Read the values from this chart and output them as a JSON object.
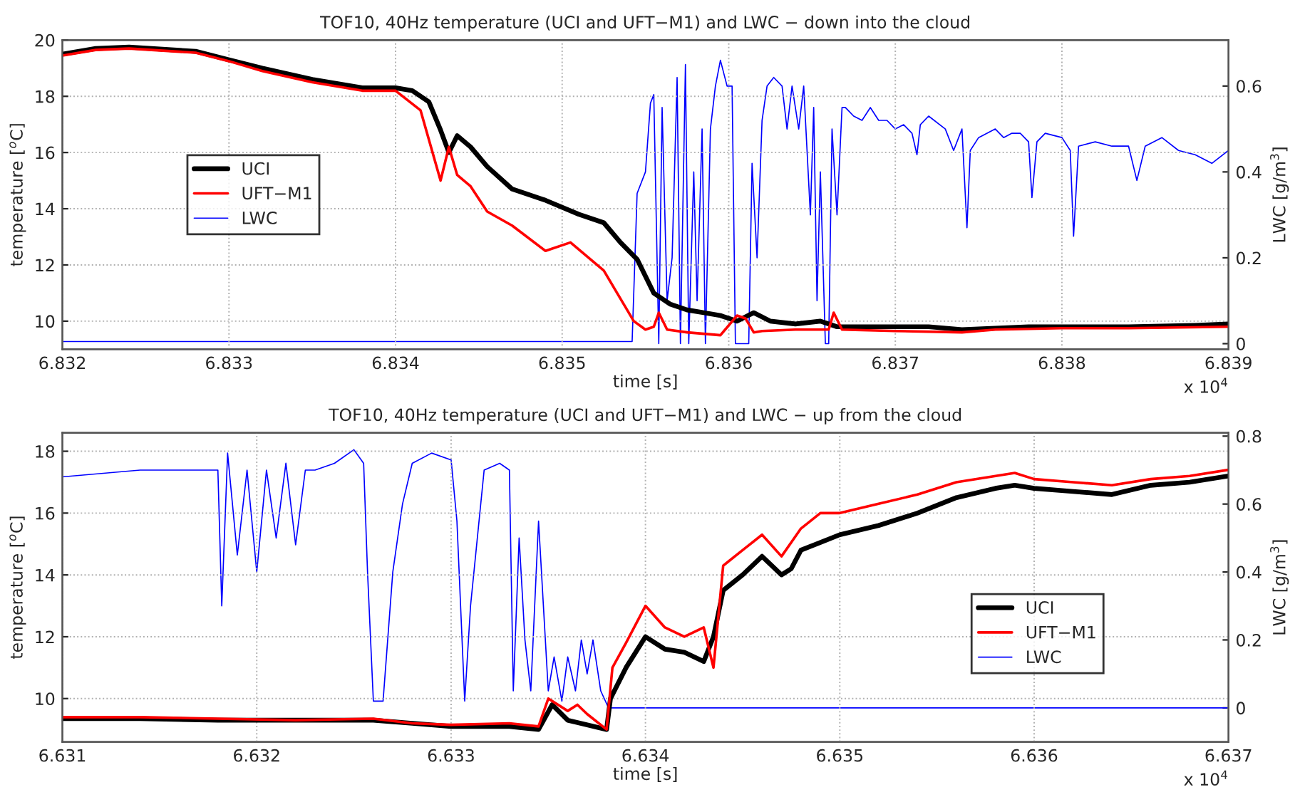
{
  "chart_data": [
    {
      "type": "line",
      "title": "TOF10, 40Hz temperature (UCI and UFT−M1) and LWC − down into the cloud",
      "xlabel": "time [s]",
      "ylabel": "temperature [$^{o}$C]",
      "y2label": "LWC [g/m$^{3}$]",
      "xlim": [
        6.832,
        6.839
      ],
      "xticks": [
        6.832,
        6.833,
        6.834,
        6.835,
        6.836,
        6.837,
        6.838,
        6.839
      ],
      "ylim": [
        9,
        20
      ],
      "yticks": [
        10,
        12,
        14,
        16,
        18,
        20
      ],
      "y2lim": [
        -0.013,
        0.707
      ],
      "y2ticks": [
        0,
        0.2,
        0.4,
        0.6
      ],
      "grid": true,
      "legend": "left",
      "annotations": [
        "x 10$^{4}$"
      ],
      "series": [
        {
          "name": "UCI",
          "color": "#000000",
          "x": [
            6.832,
            6.8322,
            6.8324,
            6.8328,
            6.833,
            6.8332,
            6.8335,
            6.8338,
            6.834,
            6.8341,
            6.8342,
            6.83427,
            6.83432,
            6.83437,
            6.83445,
            6.83455,
            6.8347,
            6.8349,
            6.8351,
            6.83525,
            6.83535,
            6.83545,
            6.83555,
            6.83565,
            6.83575,
            6.83585,
            6.83595,
            6.83605,
            6.83615,
            6.83625,
            6.8364,
            6.83655,
            6.83665,
            6.8368,
            6.837,
            6.8372,
            6.8374,
            6.8376,
            6.8378,
            6.838,
            6.8384,
            6.8388,
            6.839
          ],
          "values": [
            19.5,
            19.7,
            19.75,
            19.6,
            19.3,
            19.0,
            18.6,
            18.3,
            18.3,
            18.2,
            17.8,
            16.8,
            16.0,
            16.6,
            16.2,
            15.5,
            14.7,
            14.3,
            13.8,
            13.5,
            12.8,
            12.2,
            11.0,
            10.6,
            10.4,
            10.3,
            10.2,
            10.0,
            10.3,
            10.0,
            9.9,
            10.0,
            9.8,
            9.8,
            9.8,
            9.8,
            9.7,
            9.75,
            9.8,
            9.8,
            9.8,
            9.85,
            9.9
          ]
        },
        {
          "name": "UFT−M1",
          "color": "#ff0000",
          "x": [
            6.832,
            6.8322,
            6.8324,
            6.8328,
            6.833,
            6.8332,
            6.8335,
            6.8338,
            6.834,
            6.83415,
            6.83427,
            6.83432,
            6.83437,
            6.83445,
            6.83455,
            6.8347,
            6.8349,
            6.83505,
            6.83515,
            6.83525,
            6.83535,
            6.83543,
            6.8355,
            6.83555,
            6.83558,
            6.83563,
            6.83575,
            6.83595,
            6.83605,
            6.8361,
            6.83615,
            6.8362,
            6.8364,
            6.8366,
            6.83663,
            6.83668,
            6.837,
            6.8374,
            6.8376,
            6.838,
            6.8384,
            6.839
          ],
          "values": [
            19.45,
            19.65,
            19.7,
            19.55,
            19.25,
            18.9,
            18.5,
            18.2,
            18.2,
            17.5,
            15.0,
            16.2,
            15.2,
            14.8,
            13.9,
            13.4,
            12.5,
            12.8,
            12.3,
            11.8,
            10.8,
            10.0,
            9.7,
            9.8,
            10.3,
            9.7,
            9.6,
            9.5,
            10.2,
            10.1,
            9.6,
            9.65,
            9.7,
            9.7,
            10.3,
            9.7,
            9.65,
            9.6,
            9.7,
            9.75,
            9.75,
            9.8
          ]
        },
        {
          "name": "LWC",
          "color": "#0000ff",
          "axis": "y2",
          "x": [
            6.832,
            6.83542,
            6.83545,
            6.8355,
            6.83553,
            6.83555,
            6.83558,
            6.8356,
            6.83563,
            6.83566,
            6.83569,
            6.83571,
            6.83574,
            6.83576,
            6.83579,
            6.83581,
            6.83584,
            6.83586,
            6.83589,
            6.83592,
            6.83595,
            6.83599,
            6.83602,
            6.83604,
            6.83612,
            6.83614,
            6.83617,
            6.8362,
            6.83623,
            6.83627,
            6.83632,
            6.83635,
            6.83638,
            6.83642,
            6.83645,
            6.83649,
            6.83651,
            6.83653,
            6.83655,
            6.83658,
            6.8366,
            6.83662,
            6.83665,
            6.83668,
            6.8367,
            6.83675,
            6.8368,
            6.83685,
            6.8369,
            6.83695,
            6.837,
            6.83705,
            6.8371,
            6.83713,
            6.83715,
            6.8372,
            6.8373,
            6.83735,
            6.8374,
            6.83743,
            6.83745,
            6.8375,
            6.8376,
            6.83765,
            6.8377,
            6.83775,
            6.8378,
            6.83782,
            6.83785,
            6.8379,
            6.838,
            6.83805,
            6.83807,
            6.8381,
            6.8382,
            6.8383,
            6.8384,
            6.83845,
            6.8385,
            6.8386,
            6.8387,
            6.8388,
            6.8389,
            6.839
          ],
          "values": [
            0.005,
            0.005,
            0.35,
            0.4,
            0.56,
            0.58,
            0.0,
            0.55,
            0.1,
            0.2,
            0.62,
            0.0,
            0.65,
            0.0,
            0.4,
            0.1,
            0.5,
            0.0,
            0.5,
            0.6,
            0.66,
            0.6,
            0.6,
            0.0,
            0.0,
            0.42,
            0.2,
            0.52,
            0.6,
            0.62,
            0.6,
            0.5,
            0.6,
            0.5,
            0.6,
            0.3,
            0.55,
            0.1,
            0.4,
            0.0,
            0.0,
            0.5,
            0.3,
            0.55,
            0.55,
            0.53,
            0.52,
            0.55,
            0.52,
            0.52,
            0.5,
            0.51,
            0.49,
            0.44,
            0.51,
            0.53,
            0.5,
            0.45,
            0.5,
            0.27,
            0.45,
            0.48,
            0.5,
            0.48,
            0.49,
            0.49,
            0.47,
            0.34,
            0.47,
            0.49,
            0.48,
            0.45,
            0.25,
            0.46,
            0.47,
            0.46,
            0.46,
            0.38,
            0.46,
            0.48,
            0.45,
            0.44,
            0.42,
            0.45
          ]
        }
      ]
    },
    {
      "type": "line",
      "title": "TOF10, 40Hz temperature (UCI and UFT−M1) and LWC − up from the cloud",
      "xlabel": "time [s]",
      "ylabel": "temperature [$^{o}$C]",
      "y2label": "LWC [g/m$^{3}$]",
      "xlim": [
        6.631,
        6.637
      ],
      "xticks": [
        6.631,
        6.632,
        6.633,
        6.634,
        6.635,
        6.636,
        6.637
      ],
      "ylim": [
        8.6,
        18.6
      ],
      "yticks": [
        10,
        12,
        14,
        16,
        18
      ],
      "y2lim": [
        -0.1,
        0.81
      ],
      "y2ticks": [
        0,
        0.2,
        0.4,
        0.6,
        0.8
      ],
      "grid": true,
      "legend": "right",
      "annotations": [
        "x 10$^{4}$"
      ],
      "series": [
        {
          "name": "UCI",
          "color": "#000000",
          "x": [
            6.631,
            6.6314,
            6.6318,
            6.6322,
            6.6326,
            6.6328,
            6.633,
            6.6333,
            6.63345,
            6.63352,
            6.6336,
            6.6338,
            6.63382,
            6.6339,
            6.634,
            6.6341,
            6.6342,
            6.6343,
            6.63435,
            6.6344,
            6.6345,
            6.6346,
            6.6347,
            6.63475,
            6.6348,
            6.635,
            6.6352,
            6.6354,
            6.6356,
            6.6358,
            6.6359,
            6.636,
            6.6362,
            6.6364,
            6.6366,
            6.6368,
            6.637
          ],
          "values": [
            9.35,
            9.35,
            9.3,
            9.3,
            9.3,
            9.2,
            9.1,
            9.1,
            9.0,
            9.8,
            9.3,
            9.0,
            10.0,
            11.0,
            12.0,
            11.6,
            11.5,
            11.2,
            12.0,
            13.5,
            14.0,
            14.6,
            14.0,
            14.2,
            14.8,
            15.3,
            15.6,
            16.0,
            16.5,
            16.8,
            16.9,
            16.8,
            16.7,
            16.6,
            16.9,
            17.0,
            17.2
          ]
        },
        {
          "name": "UFT−M1",
          "color": "#ff0000",
          "x": [
            6.631,
            6.6314,
            6.6318,
            6.6322,
            6.6326,
            6.6328,
            6.633,
            6.6333,
            6.63345,
            6.6335,
            6.6336,
            6.63365,
            6.6337,
            6.6338,
            6.63383,
            6.6339,
            6.634,
            6.6341,
            6.6342,
            6.6343,
            6.63435,
            6.6344,
            6.6345,
            6.6346,
            6.6347,
            6.6348,
            6.6349,
            6.635,
            6.6352,
            6.6354,
            6.6356,
            6.6359,
            6.636,
            6.6362,
            6.6364,
            6.6366,
            6.6368,
            6.637
          ],
          "values": [
            9.4,
            9.4,
            9.35,
            9.3,
            9.35,
            9.2,
            9.15,
            9.2,
            9.1,
            10.0,
            9.6,
            9.8,
            9.5,
            9.0,
            11.0,
            11.8,
            13.0,
            12.3,
            12.0,
            12.3,
            11.0,
            14.3,
            14.8,
            15.3,
            14.6,
            15.5,
            16.0,
            16.0,
            16.3,
            16.6,
            17.0,
            17.3,
            17.1,
            17.0,
            16.9,
            17.1,
            17.2,
            17.4
          ]
        },
        {
          "name": "LWC",
          "color": "#0000ff",
          "axis": "y2",
          "x": [
            6.631,
            6.6314,
            6.6318,
            6.63182,
            6.63185,
            6.6319,
            6.63195,
            6.632,
            6.63205,
            6.6321,
            6.63215,
            6.6322,
            6.63225,
            6.6323,
            6.6324,
            6.6325,
            6.63255,
            6.63257,
            6.6326,
            6.63265,
            6.6327,
            6.63275,
            6.6328,
            6.6329,
            6.633,
            6.63303,
            6.63307,
            6.6331,
            6.63317,
            6.63325,
            6.6333,
            6.63332,
            6.63335,
            6.63338,
            6.63341,
            6.63345,
            6.6335,
            6.63353,
            6.63357,
            6.6336,
            6.63364,
            6.63367,
            6.6337,
            6.63373,
            6.63377,
            6.63381,
            6.637
          ],
          "values": [
            0.68,
            0.7,
            0.7,
            0.3,
            0.75,
            0.45,
            0.7,
            0.4,
            0.7,
            0.5,
            0.72,
            0.48,
            0.7,
            0.7,
            0.72,
            0.76,
            0.72,
            0.4,
            0.02,
            0.02,
            0.4,
            0.6,
            0.72,
            0.75,
            0.73,
            0.55,
            0.02,
            0.3,
            0.7,
            0.72,
            0.7,
            0.05,
            0.5,
            0.2,
            0.05,
            0.55,
            0.05,
            0.15,
            0.02,
            0.15,
            0.05,
            0.2,
            0.1,
            0.2,
            0.05,
            0.0,
            0.0
          ]
        }
      ]
    }
  ]
}
